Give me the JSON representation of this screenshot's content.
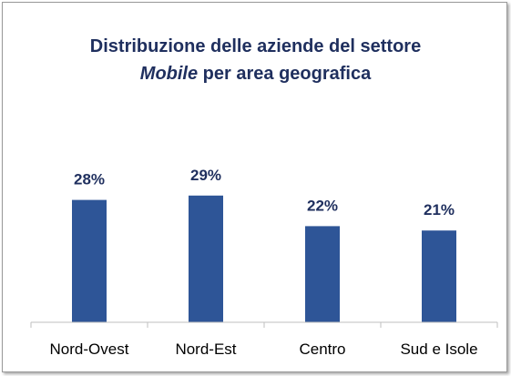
{
  "chart_data": {
    "type": "bar",
    "title_line1": "Distribuzione delle aziende del settore",
    "title_line2_italic": "Mobile",
    "title_line2_rest": " per area geografica",
    "categories": [
      "Nord-Ovest",
      "Nord-Est",
      "Centro",
      "Sud e Isole"
    ],
    "values": [
      28,
      29,
      22,
      21
    ],
    "data_labels": [
      "28%",
      "29%",
      "22%",
      "21%"
    ],
    "ylim": [
      0,
      35
    ],
    "grid": false,
    "legend": "none",
    "bar_color": "#2e5597"
  }
}
